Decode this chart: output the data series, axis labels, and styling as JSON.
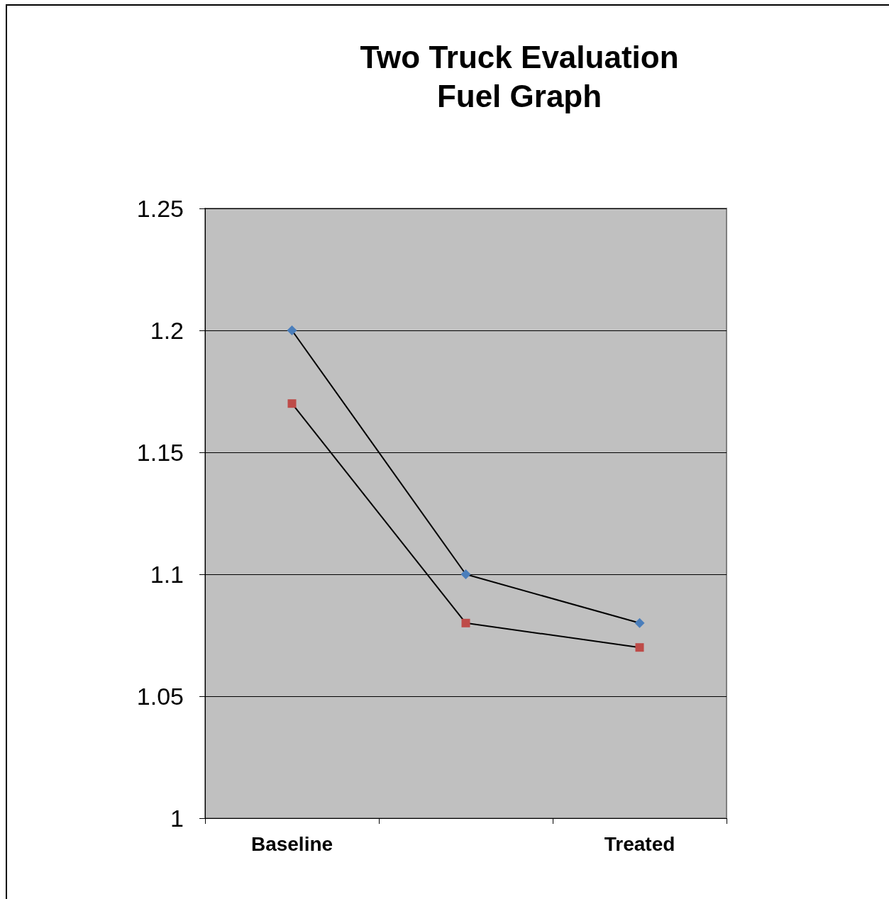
{
  "chart_data": {
    "type": "line",
    "title": "Two Truck Evaluation\nFuel Graph",
    "categories": [
      "Baseline",
      null,
      "Treated"
    ],
    "series": [
      {
        "color": "#4a7ebb",
        "marker": "diamond",
        "values": [
          1.2,
          1.1,
          1.08
        ]
      },
      {
        "color": "#be4b48",
        "marker": "square",
        "values": [
          1.17,
          1.08,
          1.07
        ]
      }
    ],
    "ylim": [
      1,
      1.25
    ],
    "yticks": [
      1,
      1.05,
      1.1,
      1.15,
      1.2,
      1.25
    ],
    "grid": "y",
    "line_style": "solid"
  }
}
